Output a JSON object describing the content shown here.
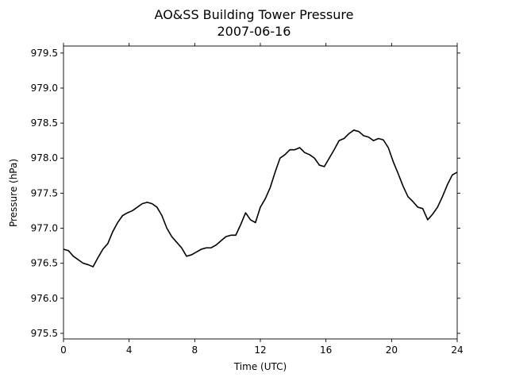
{
  "chart_data": {
    "type": "line",
    "title": "AO&SS Building Tower Pressure",
    "subtitle": "2007-06-16",
    "xlabel": "Time (UTC)",
    "ylabel": "Pressure (hPa)",
    "xlim": [
      0,
      24
    ],
    "ylim": [
      975.42,
      979.6
    ],
    "xticks": [
      0,
      4,
      8,
      12,
      16,
      20,
      24
    ],
    "xtick_labels": [
      "0",
      "4",
      "8",
      "12",
      "16",
      "20",
      "24"
    ],
    "yticks": [
      975.5,
      976.0,
      976.5,
      977.0,
      977.5,
      978.0,
      978.5,
      979.0,
      979.5
    ],
    "ytick_labels": [
      "975.5",
      "976.0",
      "976.5",
      "977.0",
      "977.5",
      "978.0",
      "978.5",
      "979.0",
      "979.5"
    ],
    "grid": false,
    "line_color": "#000000",
    "series": [
      {
        "x": [
          0,
          0.3,
          0.6,
          0.9,
          1.2,
          1.5,
          1.8,
          2.1,
          2.4,
          2.7,
          3.0,
          3.3,
          3.6,
          3.9,
          4.2,
          4.5,
          4.8,
          5.1,
          5.4,
          5.7,
          6.0,
          6.3,
          6.6,
          6.9,
          7.2,
          7.5,
          7.8,
          8.1,
          8.4,
          8.7,
          9.0,
          9.3,
          9.6,
          9.9,
          10.2,
          10.5,
          10.8,
          11.1,
          11.4,
          11.7,
          12.0,
          12.3,
          12.6,
          12.9,
          13.2,
          13.5,
          13.8,
          14.1,
          14.4,
          14.7,
          15.0,
          15.3,
          15.6,
          15.9,
          16.2,
          16.5,
          16.8,
          17.1,
          17.4,
          17.7,
          18.0,
          18.3,
          18.6,
          18.9,
          19.2,
          19.5,
          19.8,
          20.1,
          20.4,
          20.7,
          21.0,
          21.3,
          21.6,
          21.9,
          22.2,
          22.5,
          22.8,
          23.1,
          23.4,
          23.7,
          24.0
        ],
        "y": [
          976.7,
          976.68,
          976.6,
          976.55,
          976.5,
          976.48,
          976.45,
          976.58,
          976.7,
          976.78,
          976.95,
          977.08,
          977.18,
          977.22,
          977.25,
          977.3,
          977.35,
          977.37,
          977.35,
          977.3,
          977.18,
          977.0,
          976.88,
          976.8,
          976.72,
          976.6,
          976.62,
          976.66,
          976.7,
          976.72,
          976.72,
          976.76,
          976.82,
          976.88,
          976.9,
          976.9,
          977.05,
          977.22,
          977.12,
          977.08,
          977.3,
          977.42,
          977.58,
          977.8,
          978.0,
          978.05,
          978.12,
          978.12,
          978.15,
          978.08,
          978.05,
          978.0,
          977.9,
          977.88,
          978.0,
          978.12,
          978.25,
          978.28,
          978.35,
          978.4,
          978.38,
          978.32,
          978.3,
          978.25,
          978.28,
          978.26,
          978.15,
          977.95,
          977.78,
          977.6,
          977.45,
          977.38,
          977.3,
          977.28,
          977.12,
          977.2,
          977.3,
          977.45,
          977.62,
          977.76,
          977.8
        ]
      }
    ]
  }
}
